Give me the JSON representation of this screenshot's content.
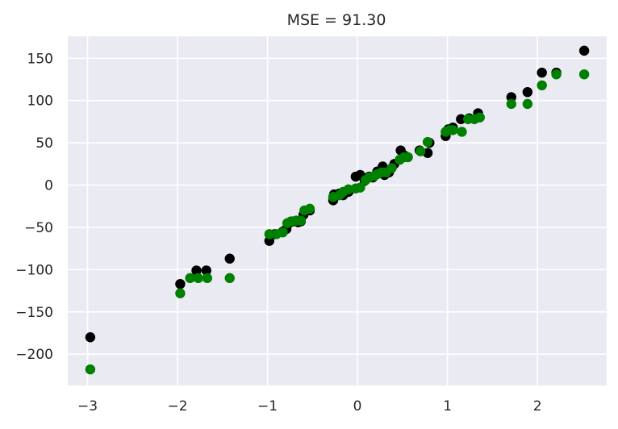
{
  "chart_data": {
    "type": "scatter",
    "title": "MSE = 91.30",
    "xlabel": "",
    "ylabel": "",
    "xlim": [
      -3.22,
      2.77
    ],
    "ylim": [
      -237,
      176
    ],
    "xticks": [
      -3,
      -2,
      -1,
      0,
      1,
      2
    ],
    "xtick_labels": [
      "−3",
      "−2",
      "−1",
      "0",
      "1",
      "2"
    ],
    "yticks": [
      -200,
      -150,
      -100,
      -50,
      0,
      50,
      100,
      150
    ],
    "ytick_labels": [
      "−200",
      "−150",
      "−100",
      "−50",
      "0",
      "50",
      "100",
      "150"
    ],
    "grid": true,
    "colors": {
      "background": "#eaeaf2",
      "grid": "#ffffff",
      "series_actual": "#000000",
      "series_predicted": "#008000"
    },
    "series": [
      {
        "color": "#000000",
        "points": [
          [
            -2.97,
            -180
          ],
          [
            -1.97,
            -117
          ],
          [
            -1.79,
            -101
          ],
          [
            -1.68,
            -101
          ],
          [
            -1.42,
            -87
          ],
          [
            -0.98,
            -66
          ],
          [
            -0.92,
            -58
          ],
          [
            -0.83,
            -55
          ],
          [
            -0.79,
            -52
          ],
          [
            -0.76,
            -45
          ],
          [
            -0.72,
            -43
          ],
          [
            -0.66,
            -44
          ],
          [
            -0.63,
            -43
          ],
          [
            -0.6,
            -35
          ],
          [
            -0.53,
            -30
          ],
          [
            -0.27,
            -18
          ],
          [
            -0.26,
            -11
          ],
          [
            -0.2,
            -10
          ],
          [
            -0.16,
            -12
          ],
          [
            -0.1,
            -8
          ],
          [
            -0.02,
            10
          ],
          [
            0.03,
            12
          ],
          [
            0.08,
            5
          ],
          [
            0.13,
            10
          ],
          [
            0.17,
            9
          ],
          [
            0.22,
            16
          ],
          [
            0.28,
            22
          ],
          [
            0.3,
            12
          ],
          [
            0.35,
            15
          ],
          [
            0.41,
            25
          ],
          [
            0.48,
            41
          ],
          [
            0.52,
            35
          ],
          [
            0.56,
            33
          ],
          [
            0.69,
            41
          ],
          [
            0.78,
            38
          ],
          [
            0.8,
            50
          ],
          [
            0.98,
            58
          ],
          [
            1.01,
            66
          ],
          [
            1.06,
            68
          ],
          [
            1.15,
            78
          ],
          [
            1.24,
            79
          ],
          [
            1.34,
            85
          ],
          [
            1.71,
            104
          ],
          [
            1.89,
            110
          ],
          [
            2.05,
            133
          ],
          [
            2.21,
            133
          ],
          [
            2.52,
            159
          ]
        ]
      },
      {
        "color": "#008000",
        "points": [
          [
            -2.97,
            -218
          ],
          [
            -1.97,
            -128
          ],
          [
            -1.86,
            -110
          ],
          [
            -1.77,
            -110
          ],
          [
            -1.67,
            -110
          ],
          [
            -1.42,
            -110
          ],
          [
            -0.98,
            -58
          ],
          [
            -0.9,
            -58
          ],
          [
            -0.83,
            -56
          ],
          [
            -0.78,
            -45
          ],
          [
            -0.74,
            -43
          ],
          [
            -0.68,
            -42
          ],
          [
            -0.63,
            -42
          ],
          [
            -0.59,
            -30
          ],
          [
            -0.53,
            -28
          ],
          [
            -0.27,
            -14
          ],
          [
            -0.2,
            -12
          ],
          [
            -0.16,
            -8
          ],
          [
            -0.1,
            -5
          ],
          [
            -0.02,
            -4
          ],
          [
            0.03,
            -3
          ],
          [
            0.09,
            6
          ],
          [
            0.13,
            9
          ],
          [
            0.19,
            11
          ],
          [
            0.22,
            13
          ],
          [
            0.27,
            15
          ],
          [
            0.32,
            15
          ],
          [
            0.38,
            20
          ],
          [
            0.47,
            30
          ],
          [
            0.52,
            33
          ],
          [
            0.56,
            33
          ],
          [
            0.7,
            40
          ],
          [
            0.78,
            51
          ],
          [
            0.98,
            63
          ],
          [
            1.02,
            65
          ],
          [
            1.06,
            65
          ],
          [
            1.16,
            63
          ],
          [
            1.23,
            78
          ],
          [
            1.3,
            78
          ],
          [
            1.36,
            80
          ],
          [
            1.71,
            96
          ],
          [
            1.89,
            96
          ],
          [
            2.05,
            118
          ],
          [
            2.21,
            131
          ],
          [
            2.52,
            131
          ]
        ]
      }
    ]
  }
}
